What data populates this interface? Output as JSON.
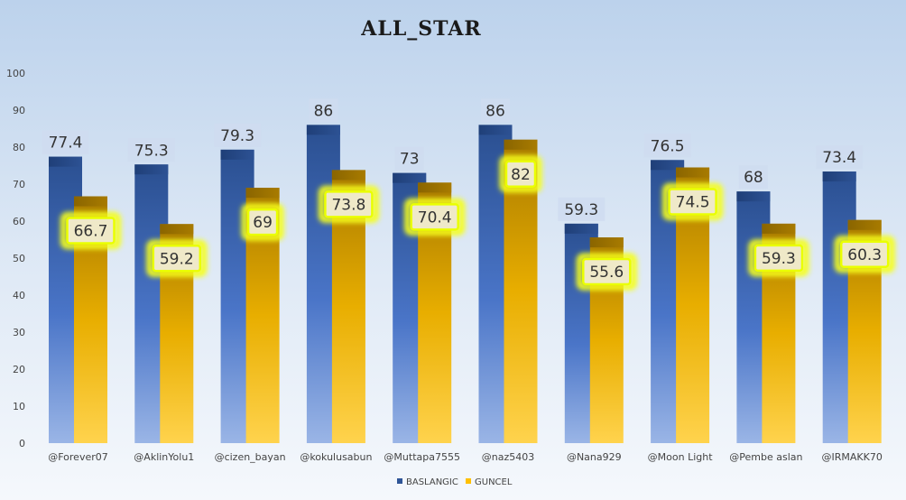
{
  "chart_data": {
    "type": "bar",
    "title": "ALL_STAR",
    "xlabel": "",
    "ylabel": "",
    "ylim": [
      0,
      100
    ],
    "yticks": [
      0,
      10,
      20,
      30,
      40,
      50,
      60,
      70,
      80,
      90,
      100
    ],
    "grid": false,
    "legend_position": "bottom",
    "categories": [
      "@Forever07",
      "@AklinYolu1",
      "@cizen_bayan",
      "@kokulusabun",
      "@Muttapa7555",
      "@naz5403",
      "@Nana929",
      "@Moon Light",
      "@Pembe aslan",
      "@IRMAKK70"
    ],
    "series": [
      {
        "name": "BASLANGIC",
        "color": "#2f5597",
        "values": [
          77.4,
          75.3,
          79.3,
          86,
          73,
          86,
          59.3,
          76.5,
          68,
          73.4
        ],
        "labels": [
          "77.4",
          "75.3",
          "79.3",
          "86",
          "73",
          "86",
          "59.3",
          "76.5",
          "68",
          "73.4"
        ]
      },
      {
        "name": "GUNCEL",
        "color": "#ffc000",
        "values": [
          66.7,
          59.2,
          69,
          73.8,
          70.4,
          82,
          55.6,
          74.5,
          59.3,
          60.3
        ],
        "labels": [
          "66.7",
          "59.2",
          "69",
          "73.8",
          "70.4",
          "82",
          "55.6",
          "74.5",
          "59.3",
          "60.3"
        ]
      }
    ]
  }
}
